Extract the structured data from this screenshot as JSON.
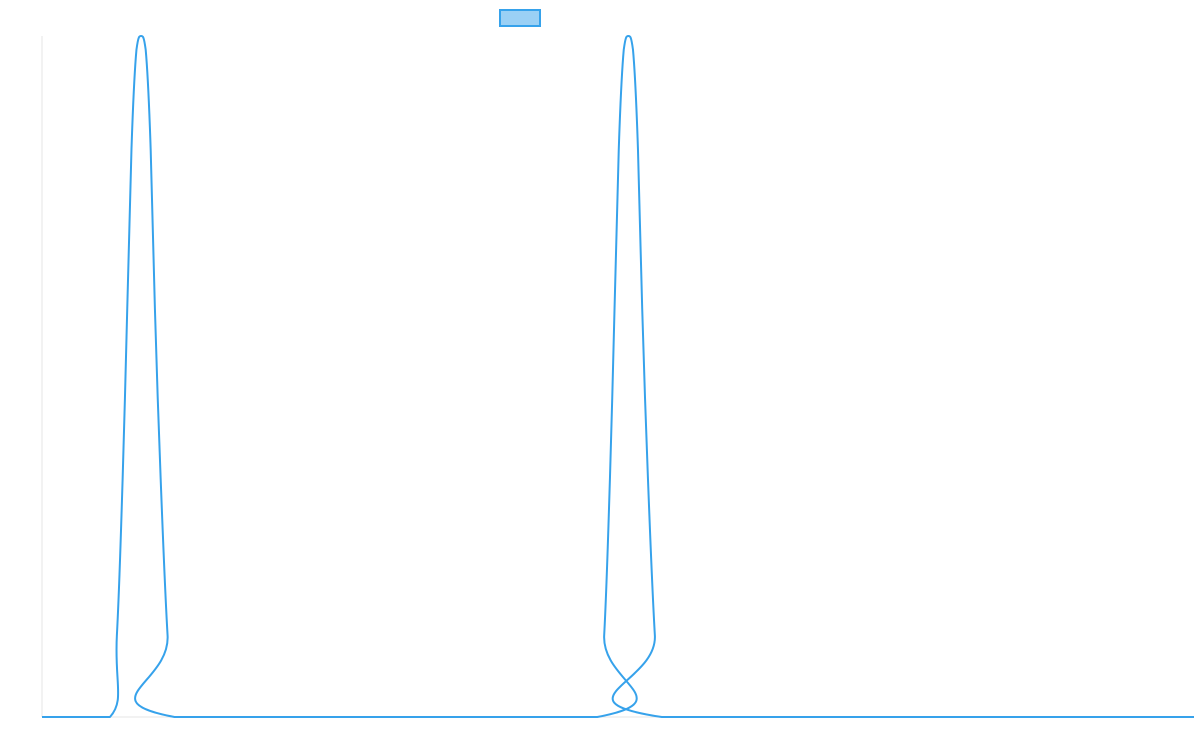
{
  "chart_data": {
    "type": "line",
    "title": "",
    "xlabel": "",
    "ylabel": "",
    "grid": false,
    "legend_position": "top-center",
    "xlim": [
      0,
      100
    ],
    "ylim": [
      0,
      1
    ],
    "series": [
      {
        "name": "",
        "line_color": "#36a2eb",
        "fill_color": "#9ad0f5",
        "x": [
          0,
          5.9,
          6.5,
          7.0,
          7.4,
          7.8,
          8.2,
          8.6,
          9.0,
          9.4,
          9.8,
          10.3,
          10.9,
          11.5,
          48.2,
          48.8,
          49.3,
          49.7,
          50.1,
          50.5,
          50.9,
          51.3,
          51.7,
          52.1,
          52.6,
          53.2,
          53.8,
          100
        ],
        "values": [
          0,
          0,
          0.12,
          0.35,
          0.6,
          0.85,
          0.98,
          1.0,
          0.98,
          0.85,
          0.6,
          0.35,
          0.12,
          0,
          0,
          0.12,
          0.35,
          0.6,
          0.85,
          0.98,
          1.0,
          0.98,
          0.85,
          0.6,
          0.35,
          0.12,
          0,
          0
        ]
      }
    ]
  }
}
